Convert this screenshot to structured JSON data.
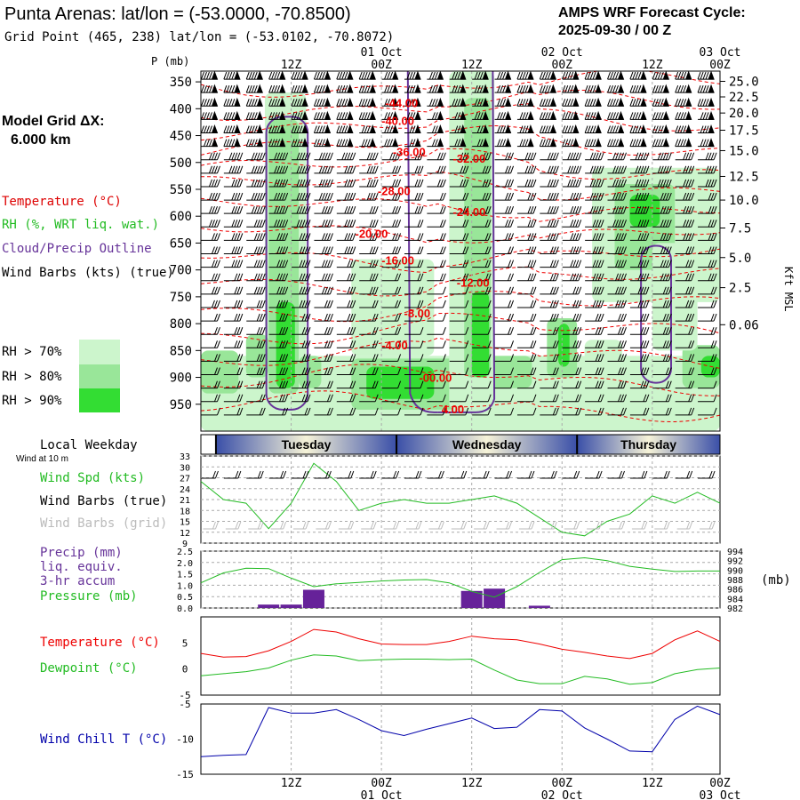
{
  "header": {
    "title": "Punta Arenas:  lat/lon = (-53.0000, -70.8500)",
    "subtitle": "Grid Point (465, 238) lat/lon = (-53.0102, -70.8072)",
    "cycle_label": "AMPS WRF Forecast Cycle:",
    "cycle_value": "2025-09-30 / 00  Z"
  },
  "grid": {
    "label": "Model Grid ΔX:",
    "value": "6.000 km"
  },
  "time_axis": {
    "ticks": [
      {
        "t": 12,
        "label": "12Z",
        "date": ""
      },
      {
        "t": 24,
        "label": "00Z",
        "date": "01 Oct"
      },
      {
        "t": 36,
        "label": "12Z",
        "date": ""
      },
      {
        "t": 48,
        "label": "00Z",
        "date": "02 Oct"
      },
      {
        "t": 60,
        "label": "12Z",
        "date": ""
      },
      {
        "t": 72,
        "label": "00Z",
        "date": "03 Oct"
      }
    ],
    "weekday_title": "Local Weekday",
    "weekdays": [
      {
        "name": "Tuesday",
        "start": 2,
        "end": 26
      },
      {
        "name": "Wednesday",
        "start": 26,
        "end": 50
      },
      {
        "name": "Thursday",
        "start": 50,
        "end": 74
      }
    ]
  },
  "chart_data": [
    {
      "type": "contour",
      "title": "Time-height cross section",
      "ylabel": "P (mb)",
      "y2label": "Kft MSL",
      "ylim": [
        1000,
        330
      ],
      "xlim": [
        0,
        69
      ],
      "pressure_ticks": [
        350,
        400,
        450,
        500,
        550,
        600,
        650,
        700,
        750,
        800,
        850,
        900,
        950
      ],
      "height_ticks": [
        {
          "p": 349,
          "label": "25.0"
        },
        {
          "p": 378,
          "label": "22.5"
        },
        {
          "p": 408,
          "label": "20.0"
        },
        {
          "p": 440,
          "label": "17.5"
        },
        {
          "p": 478,
          "label": "15.0"
        },
        {
          "p": 526,
          "label": "12.5"
        },
        {
          "p": 570,
          "label": "10.0"
        },
        {
          "p": 622,
          "label": "7.5"
        },
        {
          "p": 677,
          "label": "5.0"
        },
        {
          "p": 733,
          "label": "2.5"
        },
        {
          "p": 802,
          "label": "0.06"
        }
      ],
      "legend": {
        "temperature": "Temperature (°C)",
        "rh": "RH (%, WRT liq. wat.)",
        "cloud": "Cloud/Precip Outline",
        "wind": "Wind Barbs (kts) (true)",
        "rh_levels": [
          "RH > 70%",
          "RH > 80%",
          "RH > 90%"
        ]
      },
      "rh_colors": [
        "#ccf5cc",
        "#99e699",
        "#33dd33"
      ],
      "temp_color": "#ee0000",
      "cloud_color": "#663399",
      "isotherm_labels": [
        {
          "t": 24.5,
          "p": 397,
          "label": "-44.00"
        },
        {
          "t": 24.0,
          "p": 430,
          "label": "-40.00"
        },
        {
          "t": 25.5,
          "p": 488,
          "label": "-36.00"
        },
        {
          "t": 33.5,
          "p": 500,
          "label": "-32.00"
        },
        {
          "t": 23.5,
          "p": 561,
          "label": "-28.00"
        },
        {
          "t": 33.5,
          "p": 600,
          "label": "-24.00"
        },
        {
          "t": 20.5,
          "p": 640,
          "label": "-20.00"
        },
        {
          "t": 24.0,
          "p": 690,
          "label": "-16.00"
        },
        {
          "t": 34.0,
          "p": 731,
          "label": "-12.00"
        },
        {
          "t": 27.0,
          "p": 788,
          "label": "-8.00"
        },
        {
          "t": 24.0,
          "p": 848,
          "label": "-4.00"
        },
        {
          "t": 29.0,
          "p": 908,
          "label": "-00.00"
        },
        {
          "t": 32.0,
          "p": 967,
          "label": "4.00"
        }
      ]
    },
    {
      "type": "line",
      "title": "Wind at 10 m",
      "series": [
        {
          "name": "Wind Spd (kts)",
          "color": "#22bb22",
          "x": [
            0,
            3,
            6,
            9,
            12,
            15,
            18,
            21,
            24,
            27,
            30,
            33,
            36,
            39,
            42,
            45,
            48,
            51,
            54,
            57,
            60,
            63,
            66,
            69
          ],
          "y": [
            26,
            21,
            20,
            13,
            20,
            31,
            26,
            18,
            20,
            21,
            20,
            20,
            21,
            22,
            20,
            16,
            12,
            11,
            15,
            17,
            22,
            20,
            23,
            20
          ]
        }
      ],
      "labels": [
        "Wind Spd (kts)",
        "Wind Barbs (true)",
        "Wind Barbs (grid)"
      ],
      "ylim": [
        9,
        33
      ],
      "yticks": [
        9,
        12,
        15,
        18,
        21,
        24,
        27,
        30,
        33
      ]
    },
    {
      "type": "bar+line",
      "labels": [
        "Precip (mm)",
        "liq. equiv.",
        "3-hr accum",
        "Pressure (mb)"
      ],
      "precip": {
        "color": "#662299",
        "bars": [
          {
            "t": 9,
            "v": 0.15
          },
          {
            "t": 12,
            "v": 0.15
          },
          {
            "t": 15,
            "v": 0.8
          },
          {
            "t": 36,
            "v": 0.75
          },
          {
            "t": 39,
            "v": 0.85
          },
          {
            "t": 45,
            "v": 0.1
          }
        ],
        "ylim": [
          0,
          2.5
        ],
        "yticks": [
          0.0,
          0.5,
          1.0,
          1.5,
          2.0,
          2.5
        ]
      },
      "pressure": {
        "color": "#22bb22",
        "unit": "(mb)",
        "x": [
          0,
          3,
          6,
          9,
          12,
          15,
          18,
          21,
          24,
          27,
          30,
          33,
          36,
          39,
          42,
          45,
          48,
          51,
          54,
          57,
          60,
          63,
          66,
          69
        ],
        "y": [
          987.3,
          989.4,
          990.4,
          990.3,
          988.3,
          986.5,
          987.1,
          987.4,
          987.7,
          987.9,
          988.0,
          987.3,
          985.5,
          984.3,
          986.5,
          989.5,
          992.2,
          992.6,
          992.0,
          990.8,
          990.2,
          989.7,
          989.8,
          989.8
        ],
        "ylim": [
          982,
          994
        ],
        "yticks": [
          982,
          984,
          986,
          988,
          990,
          992,
          994
        ]
      }
    },
    {
      "type": "line",
      "labels": [
        "Temperature (°C)",
        "Dewpoint (°C)"
      ],
      "ylim": [
        -5,
        10
      ],
      "yticks": [
        -5,
        0,
        5
      ],
      "series": [
        {
          "name": "Temperature (°C)",
          "color": "#ee0000",
          "x": [
            0,
            3,
            6,
            9,
            12,
            15,
            18,
            21,
            24,
            27,
            30,
            33,
            36,
            39,
            42,
            45,
            48,
            51,
            54,
            57,
            60,
            63,
            66,
            69
          ],
          "y": [
            3.0,
            2.3,
            2.4,
            3.5,
            5.3,
            7.6,
            7.1,
            5.8,
            4.8,
            4.7,
            4.7,
            5.3,
            6.3,
            5.8,
            5.6,
            4.8,
            3.8,
            3.2,
            2.5,
            2.0,
            3.0,
            5.6,
            7.3,
            5.3
          ]
        },
        {
          "name": "Dewpoint (°C)",
          "color": "#22bb22",
          "x": [
            0,
            3,
            6,
            9,
            12,
            15,
            18,
            21,
            24,
            27,
            30,
            33,
            36,
            39,
            42,
            45,
            48,
            51,
            54,
            57,
            60,
            63,
            66,
            69
          ],
          "y": [
            -1.3,
            -0.9,
            -0.5,
            0.2,
            1.7,
            2.7,
            2.5,
            1.6,
            1.8,
            1.9,
            1.9,
            1.8,
            1.9,
            -0.2,
            -2.1,
            -2.8,
            -2.8,
            -1.4,
            -1.9,
            -2.9,
            -2.6,
            -0.9,
            -0.1,
            0.2
          ]
        }
      ]
    },
    {
      "type": "line",
      "labels": [
        "Wind Chill T (°C)"
      ],
      "ylim": [
        -15,
        -5
      ],
      "yticks": [
        -15,
        -10,
        -5
      ],
      "series": [
        {
          "name": "Wind Chill T (°C)",
          "color": "#0000aa",
          "x": [
            0,
            3,
            6,
            9,
            12,
            15,
            18,
            21,
            24,
            27,
            30,
            33,
            36,
            39,
            42,
            45,
            48,
            51,
            54,
            57,
            60,
            63,
            66,
            69
          ],
          "y": [
            -12.5,
            -12.3,
            -12.2,
            -5.5,
            -6.3,
            -6.3,
            -5.8,
            -7.2,
            -8.8,
            -9.5,
            -8.6,
            -7.8,
            -7.0,
            -8.5,
            -8.3,
            -5.8,
            -6.0,
            -8.4,
            -10.0,
            -11.7,
            -11.8,
            -7.2,
            -5.3,
            -6.5
          ]
        }
      ]
    }
  ]
}
